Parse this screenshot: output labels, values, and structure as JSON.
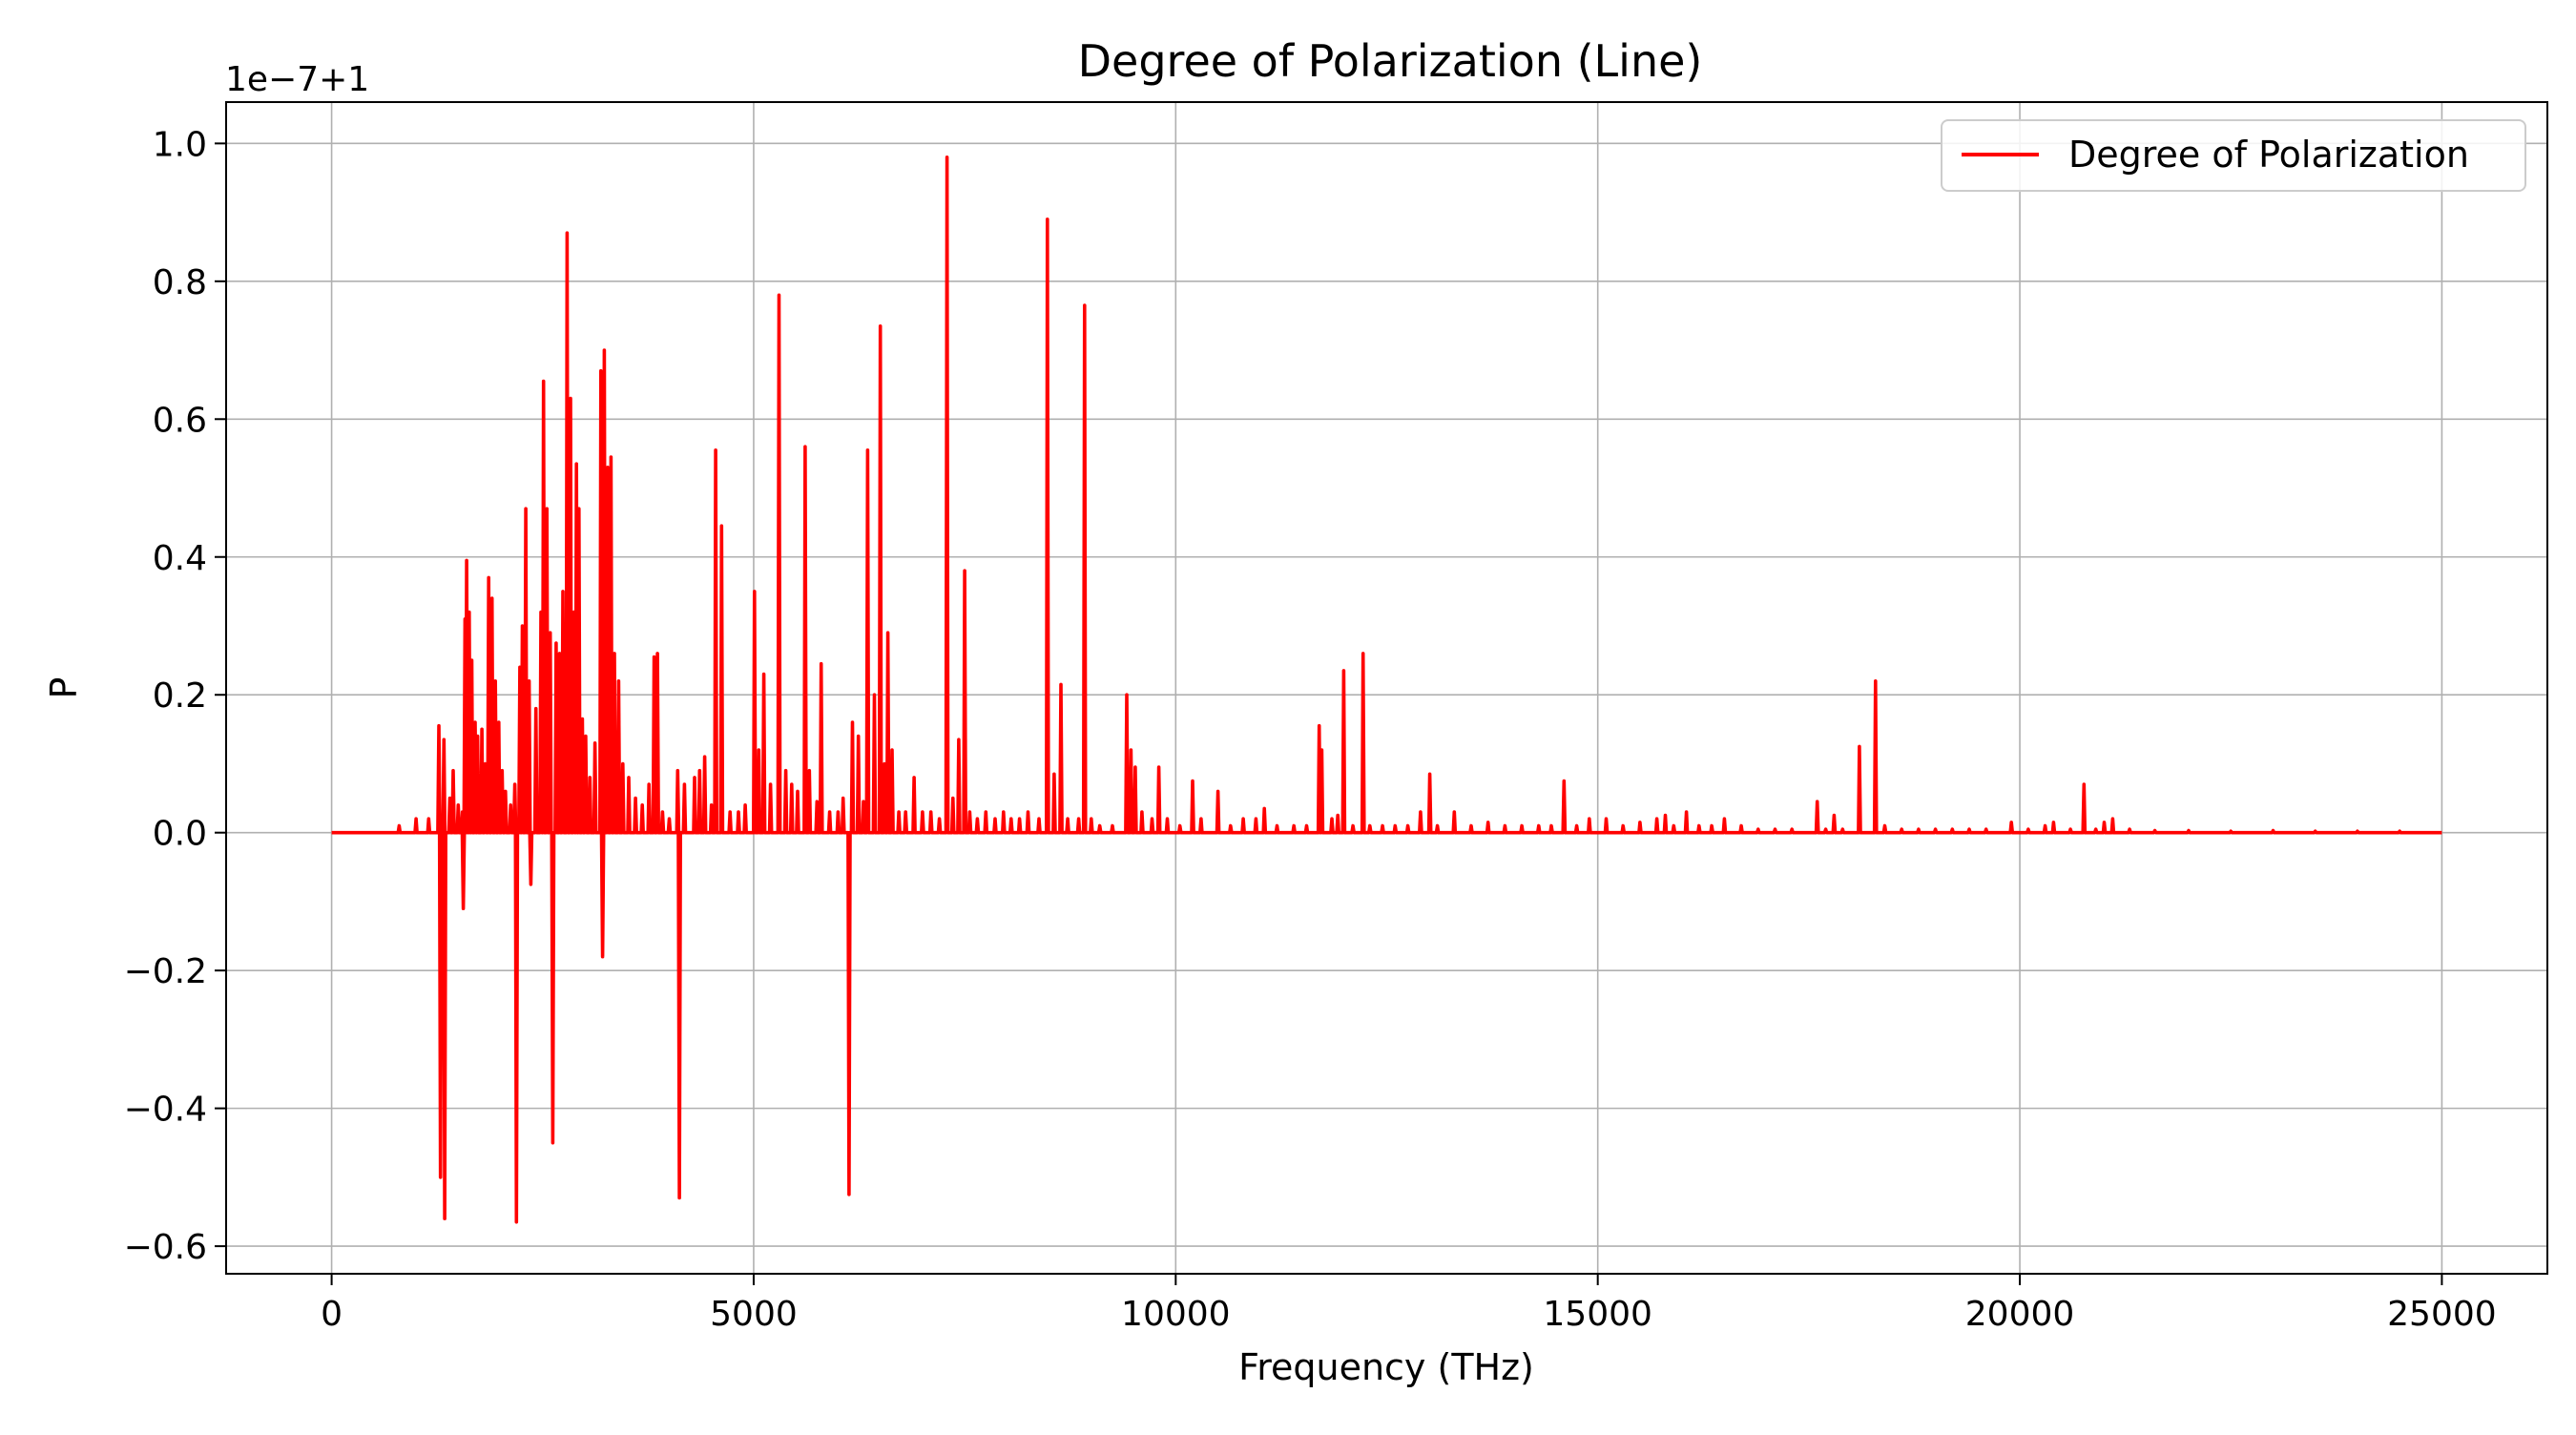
{
  "chart_data": {
    "type": "line",
    "title": "Degree of Polarization (Line)",
    "xlabel": "Frequency (THz)",
    "ylabel": "P",
    "y_offset_label": "1e−7+1",
    "xlim": [
      -1250,
      26250
    ],
    "ylim": [
      -0.64,
      1.06
    ],
    "xticks": [
      0,
      5000,
      10000,
      15000,
      20000,
      25000
    ],
    "xtick_labels": [
      "0",
      "5000",
      "10000",
      "15000",
      "20000",
      "25000"
    ],
    "yticks": [
      -0.6,
      -0.4,
      -0.2,
      0.0,
      0.2,
      0.4,
      0.6,
      0.8,
      1.0
    ],
    "ytick_labels": [
      "−0.6",
      "−0.4",
      "−0.2",
      "0.0",
      "0.2",
      "0.4",
      "0.6",
      "0.8",
      "1.0"
    ],
    "grid": true,
    "legend": {
      "position": "top-right"
    },
    "series": [
      {
        "name": "Degree of Polarization",
        "color": "#ff0000",
        "x_range": [
          0,
          25000
        ],
        "baseline": 0.0,
        "spikes": [
          [
            800,
            0.01
          ],
          [
            1000,
            0.02
          ],
          [
            1150,
            0.02
          ],
          [
            1270,
            0.155
          ],
          [
            1290,
            -0.5
          ],
          [
            1330,
            0.135
          ],
          [
            1340,
            -0.56
          ],
          [
            1400,
            0.05
          ],
          [
            1440,
            0.09
          ],
          [
            1500,
            0.04
          ],
          [
            1550,
            0.03
          ],
          [
            1560,
            -0.11
          ],
          [
            1580,
            0.31
          ],
          [
            1600,
            0.395
          ],
          [
            1630,
            0.32
          ],
          [
            1660,
            0.25
          ],
          [
            1700,
            0.16
          ],
          [
            1730,
            0.14
          ],
          [
            1780,
            0.15
          ],
          [
            1820,
            0.1
          ],
          [
            1860,
            0.37
          ],
          [
            1900,
            0.34
          ],
          [
            1940,
            0.22
          ],
          [
            1980,
            0.16
          ],
          [
            2020,
            0.09
          ],
          [
            2060,
            0.06
          ],
          [
            2120,
            0.04
          ],
          [
            2170,
            0.07
          ],
          [
            2190,
            -0.565
          ],
          [
            2230,
            0.24
          ],
          [
            2260,
            0.3
          ],
          [
            2300,
            0.47
          ],
          [
            2340,
            0.22
          ],
          [
            2360,
            -0.075
          ],
          [
            2420,
            0.18
          ],
          [
            2480,
            0.32
          ],
          [
            2510,
            0.655
          ],
          [
            2550,
            0.47
          ],
          [
            2590,
            0.29
          ],
          [
            2620,
            -0.45
          ],
          [
            2660,
            0.275
          ],
          [
            2700,
            0.26
          ],
          [
            2740,
            0.35
          ],
          [
            2790,
            0.87
          ],
          [
            2830,
            0.63
          ],
          [
            2870,
            0.32
          ],
          [
            2900,
            0.535
          ],
          [
            2930,
            0.47
          ],
          [
            2970,
            0.165
          ],
          [
            3010,
            0.14
          ],
          [
            3060,
            0.08
          ],
          [
            3120,
            0.13
          ],
          [
            3190,
            0.67
          ],
          [
            3210,
            -0.18
          ],
          [
            3230,
            0.7
          ],
          [
            3270,
            0.53
          ],
          [
            3310,
            0.545
          ],
          [
            3350,
            0.26
          ],
          [
            3400,
            0.22
          ],
          [
            3450,
            0.1
          ],
          [
            3520,
            0.08
          ],
          [
            3600,
            0.05
          ],
          [
            3680,
            0.04
          ],
          [
            3760,
            0.07
          ],
          [
            3820,
            0.255
          ],
          [
            3860,
            0.26
          ],
          [
            3920,
            0.03
          ],
          [
            4000,
            0.02
          ],
          [
            4100,
            0.09
          ],
          [
            4120,
            -0.53
          ],
          [
            4180,
            0.07
          ],
          [
            4300,
            0.08
          ],
          [
            4360,
            0.09
          ],
          [
            4420,
            0.11
          ],
          [
            4500,
            0.04
          ],
          [
            4550,
            0.555
          ],
          [
            4620,
            0.445
          ],
          [
            4720,
            0.03
          ],
          [
            4820,
            0.03
          ],
          [
            4900,
            0.04
          ],
          [
            5010,
            0.35
          ],
          [
            5060,
            0.12
          ],
          [
            5120,
            0.23
          ],
          [
            5200,
            0.07
          ],
          [
            5300,
            0.78
          ],
          [
            5380,
            0.09
          ],
          [
            5450,
            0.07
          ],
          [
            5520,
            0.06
          ],
          [
            5610,
            0.56
          ],
          [
            5660,
            0.09
          ],
          [
            5750,
            0.045
          ],
          [
            5800,
            0.245
          ],
          [
            5900,
            0.03
          ],
          [
            6000,
            0.03
          ],
          [
            6060,
            0.05
          ],
          [
            6130,
            -0.525
          ],
          [
            6170,
            0.16
          ],
          [
            6240,
            0.14
          ],
          [
            6300,
            0.045
          ],
          [
            6350,
            0.555
          ],
          [
            6430,
            0.2
          ],
          [
            6500,
            0.735
          ],
          [
            6550,
            0.1
          ],
          [
            6590,
            0.29
          ],
          [
            6640,
            0.12
          ],
          [
            6720,
            0.03
          ],
          [
            6800,
            0.03
          ],
          [
            6900,
            0.08
          ],
          [
            7000,
            0.03
          ],
          [
            7100,
            0.03
          ],
          [
            7200,
            0.02
          ],
          [
            7290,
            0.98
          ],
          [
            7360,
            0.05
          ],
          [
            7430,
            0.135
          ],
          [
            7500,
            0.38
          ],
          [
            7560,
            0.03
          ],
          [
            7650,
            0.02
          ],
          [
            7750,
            0.03
          ],
          [
            7860,
            0.02
          ],
          [
            7960,
            0.03
          ],
          [
            8050,
            0.02
          ],
          [
            8150,
            0.02
          ],
          [
            8250,
            0.03
          ],
          [
            8380,
            0.02
          ],
          [
            8480,
            0.89
          ],
          [
            8560,
            0.085
          ],
          [
            8640,
            0.215
          ],
          [
            8720,
            0.02
          ],
          [
            8850,
            0.02
          ],
          [
            8920,
            0.765
          ],
          [
            9000,
            0.02
          ],
          [
            9100,
            0.01
          ],
          [
            9250,
            0.01
          ],
          [
            9420,
            0.2
          ],
          [
            9470,
            0.12
          ],
          [
            9520,
            0.095
          ],
          [
            9600,
            0.03
          ],
          [
            9720,
            0.02
          ],
          [
            9800,
            0.095
          ],
          [
            9900,
            0.02
          ],
          [
            10050,
            0.01
          ],
          [
            10200,
            0.075
          ],
          [
            10300,
            0.02
          ],
          [
            10500,
            0.06
          ],
          [
            10650,
            0.01
          ],
          [
            10800,
            0.02
          ],
          [
            10950,
            0.02
          ],
          [
            11050,
            0.035
          ],
          [
            11200,
            0.01
          ],
          [
            11400,
            0.01
          ],
          [
            11550,
            0.01
          ],
          [
            11700,
            0.155
          ],
          [
            11730,
            0.12
          ],
          [
            11850,
            0.02
          ],
          [
            11920,
            0.025
          ],
          [
            11990,
            0.235
          ],
          [
            12100,
            0.01
          ],
          [
            12220,
            0.26
          ],
          [
            12300,
            0.01
          ],
          [
            12450,
            0.01
          ],
          [
            12600,
            0.01
          ],
          [
            12750,
            0.01
          ],
          [
            12900,
            0.03
          ],
          [
            13010,
            0.085
          ],
          [
            13100,
            0.01
          ],
          [
            13300,
            0.03
          ],
          [
            13500,
            0.01
          ],
          [
            13700,
            0.015
          ],
          [
            13900,
            0.01
          ],
          [
            14100,
            0.01
          ],
          [
            14300,
            0.01
          ],
          [
            14450,
            0.01
          ],
          [
            14600,
            0.075
          ],
          [
            14750,
            0.01
          ],
          [
            14900,
            0.02
          ],
          [
            15100,
            0.02
          ],
          [
            15300,
            0.01
          ],
          [
            15500,
            0.015
          ],
          [
            15700,
            0.02
          ],
          [
            15800,
            0.025
          ],
          [
            15900,
            0.01
          ],
          [
            16050,
            0.03
          ],
          [
            16200,
            0.01
          ],
          [
            16350,
            0.01
          ],
          [
            16500,
            0.02
          ],
          [
            16700,
            0.01
          ],
          [
            16900,
            0.005
          ],
          [
            17100,
            0.005
          ],
          [
            17300,
            0.005
          ],
          [
            17600,
            0.045
          ],
          [
            17700,
            0.005
          ],
          [
            17800,
            0.025
          ],
          [
            17900,
            0.005
          ],
          [
            18100,
            0.125
          ],
          [
            18290,
            0.22
          ],
          [
            18400,
            0.01
          ],
          [
            18600,
            0.005
          ],
          [
            18800,
            0.005
          ],
          [
            19000,
            0.005
          ],
          [
            19200,
            0.005
          ],
          [
            19400,
            0.005
          ],
          [
            19600,
            0.005
          ],
          [
            19900,
            0.015
          ],
          [
            20100,
            0.005
          ],
          [
            20300,
            0.01
          ],
          [
            20400,
            0.015
          ],
          [
            20600,
            0.005
          ],
          [
            20760,
            0.07
          ],
          [
            20900,
            0.005
          ],
          [
            21000,
            0.015
          ],
          [
            21100,
            0.02
          ],
          [
            21300,
            0.005
          ],
          [
            21600,
            0.003
          ],
          [
            22000,
            0.003
          ],
          [
            22500,
            0.002
          ],
          [
            23000,
            0.003
          ],
          [
            23500,
            0.002
          ],
          [
            24000,
            0.002
          ],
          [
            24500,
            0.002
          ]
        ]
      }
    ]
  }
}
